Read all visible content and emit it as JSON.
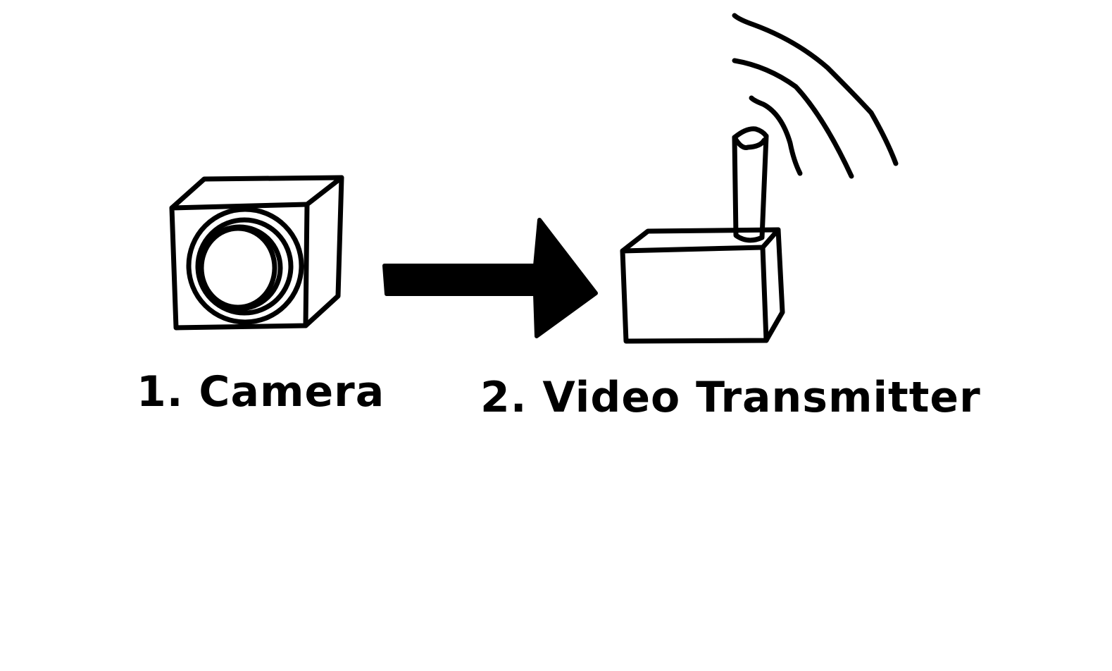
{
  "diagram": {
    "steps": [
      {
        "label": "1. Camera",
        "icon": "camera-icon"
      },
      {
        "label": "2. Video Transmitter",
        "icon": "video-transmitter-icon"
      }
    ],
    "connector": {
      "icon": "arrow-right-icon"
    },
    "signal": {
      "icon": "radio-waves-icon"
    },
    "colors": {
      "ink": "#000000",
      "background": "#ffffff"
    }
  }
}
